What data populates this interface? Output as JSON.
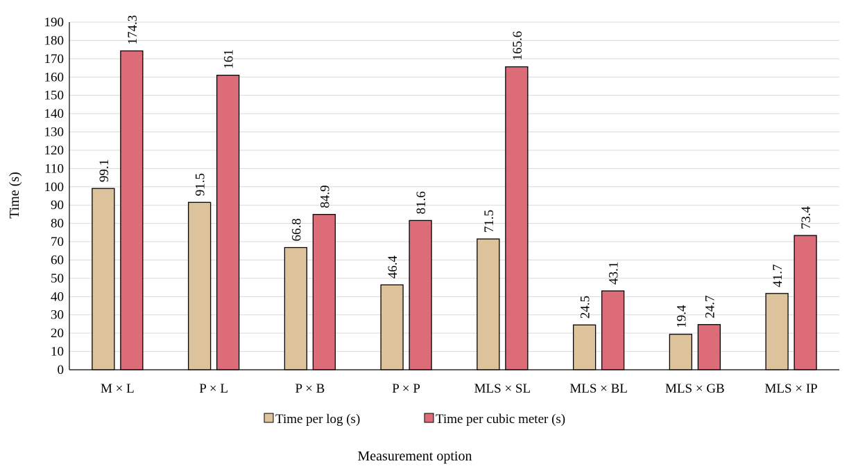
{
  "chart_data": {
    "type": "bar",
    "categories": [
      "M × L",
      "P × L",
      "P × B",
      "P × P",
      "MLS × SL",
      "MLS × BL",
      "MLS × GB",
      "MLS × IP"
    ],
    "series": [
      {
        "name": "Time per log (s)",
        "values": [
          99.1,
          91.5,
          66.8,
          46.4,
          71.5,
          24.5,
          19.4,
          41.7
        ],
        "color": "#dcc39c"
      },
      {
        "name": "Time per cubic meter (s)",
        "values": [
          174.3,
          161,
          84.9,
          81.6,
          165.6,
          43.1,
          24.7,
          73.4
        ],
        "color": "#db6c78"
      }
    ],
    "title": "",
    "xlabel": "Measurement option",
    "ylabel": "Time (s)",
    "ylim": [
      0,
      190
    ],
    "ytick_step": 10,
    "grid": true,
    "legend": "bottom",
    "data_labels": true,
    "data_label_orientation": "vertical"
  }
}
